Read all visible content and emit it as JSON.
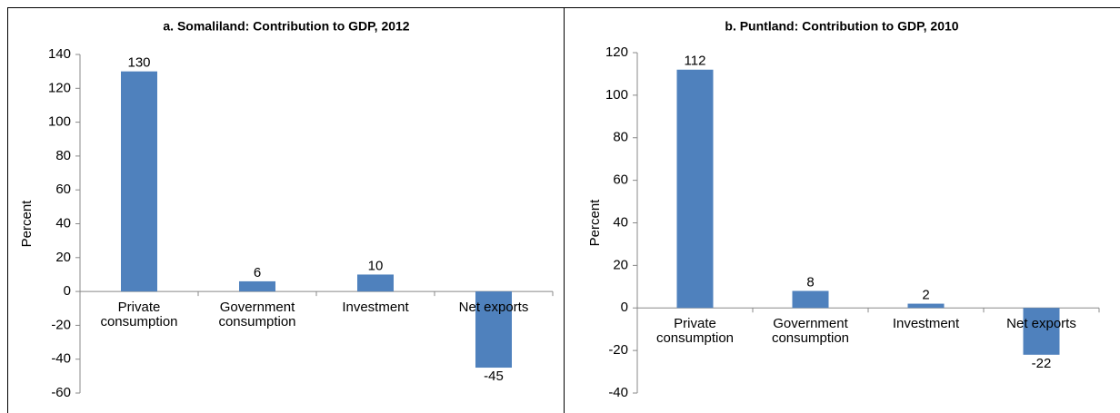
{
  "chart_data": [
    {
      "type": "bar",
      "title": "a. Somaliland: Contribution to GDP, 2012",
      "y_label": "Percent",
      "categories": [
        "Private consumption",
        "Government consumption",
        "Investment",
        "Net exports"
      ],
      "values": [
        130,
        6,
        10,
        -45
      ],
      "color": "#4f81bd",
      "ylim": [
        -60,
        140
      ],
      "yticks": [
        -60,
        -40,
        -20,
        0,
        20,
        40,
        60,
        80,
        100,
        120,
        140
      ]
    },
    {
      "type": "bar",
      "title": "b. Puntland: Contribution to GDP, 2010",
      "y_label": "Percent",
      "categories": [
        "Private consumption",
        "Government consumption",
        "Investment",
        "Net exports"
      ],
      "values": [
        112,
        8,
        2,
        -22
      ],
      "color": "#4f81bd",
      "ylim": [
        -40,
        120
      ],
      "yticks": [
        -40,
        -20,
        0,
        20,
        40,
        60,
        80,
        100,
        120
      ]
    }
  ]
}
